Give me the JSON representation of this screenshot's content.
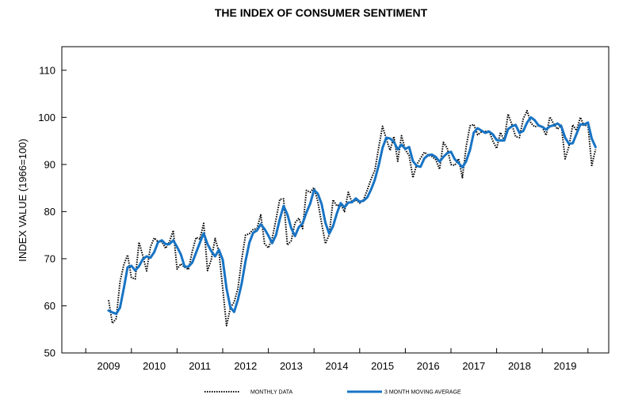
{
  "chart_data": {
    "type": "line",
    "title": "THE INDEX OF CONSUMER SENTIMENT",
    "ylabel": "INDEX VALUE (1966=100)",
    "xlabel": "",
    "ylim": [
      50,
      115
    ],
    "yticks": [
      50,
      60,
      70,
      80,
      90,
      100,
      110
    ],
    "x_ticks": [
      "2009",
      "2010",
      "2011",
      "2012",
      "2013",
      "2014",
      "2015",
      "2016",
      "2017",
      "2018",
      "2019"
    ],
    "grid": false,
    "legend_position": "bottom",
    "x_start": "2009-01",
    "series": [
      {
        "name": "MONTHLY DATA",
        "color": "#000000",
        "style": "dotted",
        "values": [
          61.2,
          56.3,
          57.3,
          65.1,
          68.7,
          70.8,
          66.0,
          65.7,
          73.5,
          70.6,
          67.4,
          72.5,
          74.4,
          73.6,
          73.6,
          72.2,
          73.6,
          76.0,
          67.8,
          68.9,
          68.2,
          67.7,
          71.6,
          74.5,
          74.2,
          77.5,
          67.5,
          69.8,
          74.3,
          71.5,
          63.7,
          55.8,
          59.5,
          60.8,
          63.7,
          69.9,
          75.0,
          75.3,
          76.2,
          76.4,
          79.3,
          73.2,
          72.3,
          74.3,
          78.3,
          82.6,
          82.7,
          72.9,
          73.8,
          77.6,
          78.6,
          76.4,
          84.5,
          84.1,
          85.1,
          82.1,
          77.5,
          73.2,
          75.1,
          82.5,
          81.2,
          81.6,
          80.0,
          84.1,
          81.9,
          82.5,
          81.8,
          82.5,
          84.6,
          86.9,
          88.8,
          93.6,
          98.1,
          95.4,
          93.0,
          95.9,
          90.7,
          96.1,
          93.1,
          91.9,
          87.2,
          90.0,
          91.3,
          92.6,
          92.0,
          91.7,
          91.0,
          89.0,
          94.7,
          93.5,
          90.0,
          89.8,
          91.2,
          87.2,
          93.8,
          98.2,
          98.5,
          96.3,
          96.9,
          97.0,
          97.1,
          95.0,
          93.4,
          96.8,
          95.1,
          100.7,
          98.5,
          95.9,
          95.7,
          99.7,
          101.4,
          98.8,
          98.0,
          98.2,
          97.9,
          96.2,
          100.1,
          98.6,
          97.5,
          98.3,
          91.2,
          93.8,
          98.4,
          97.2,
          100.0,
          98.2,
          98.4,
          89.8,
          93.2
        ]
      },
      {
        "name": "3 MONTH MOVING AVERAGE",
        "color": "#1874c4",
        "style": "solid",
        "values": [
          59.0,
          58.6,
          58.3,
          59.6,
          63.7,
          68.2,
          68.5,
          67.5,
          68.4,
          69.9,
          70.5,
          70.2,
          71.4,
          73.5,
          73.9,
          73.1,
          73.1,
          73.9,
          72.5,
          70.9,
          68.3,
          68.3,
          69.2,
          71.3,
          73.4,
          75.4,
          73.1,
          71.6,
          70.5,
          71.9,
          69.8,
          63.7,
          59.7,
          58.7,
          61.3,
          64.8,
          69.5,
          73.4,
          75.5,
          76.0,
          77.3,
          76.3,
          74.9,
          73.3,
          75.0,
          78.4,
          81.2,
          79.4,
          76.5,
          74.8,
          76.7,
          77.5,
          79.8,
          81.7,
          84.6,
          83.8,
          81.6,
          77.6,
          75.3,
          76.9,
          79.6,
          81.8,
          80.9,
          81.9,
          82.0,
          82.8,
          82.1,
          82.3,
          83.0,
          84.7,
          86.8,
          89.8,
          93.5,
          95.7,
          95.5,
          94.8,
          93.2,
          94.2,
          93.3,
          93.7,
          90.7,
          89.7,
          89.5,
          91.3,
          92.0,
          92.1,
          91.6,
          90.6,
          91.6,
          92.4,
          92.7,
          91.1,
          90.3,
          89.4,
          90.7,
          93.1,
          96.8,
          97.7,
          97.2,
          96.7,
          97.0,
          96.4,
          95.2,
          95.1,
          95.1,
          97.5,
          98.1,
          98.4,
          96.7,
          97.1,
          98.9,
          100.0,
          99.4,
          98.3,
          98.0,
          97.4,
          98.1,
          98.3,
          98.7,
          98.1,
          95.7,
          94.4,
          94.5,
          96.5,
          98.5,
          98.5,
          98.9,
          95.5,
          93.7
        ]
      }
    ]
  }
}
